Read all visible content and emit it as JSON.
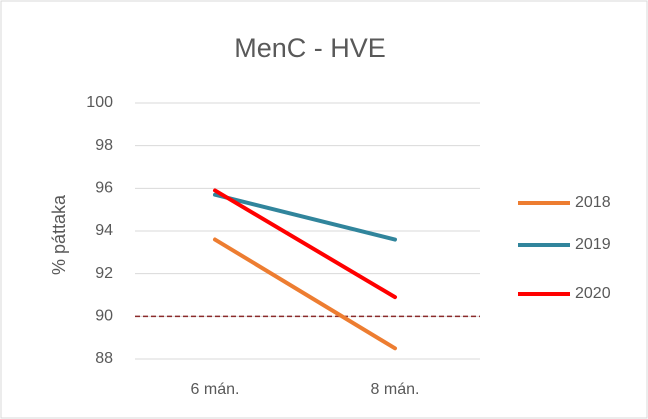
{
  "chart_data": {
    "type": "line",
    "title": "MenC - HVE",
    "y_label": "% páttaka",
    "categories": [
      "6 mán.",
      "8 mán."
    ],
    "series": [
      {
        "name": "2018",
        "color": "#ed7d31",
        "values": [
          93.6,
          88.5
        ]
      },
      {
        "name": "2019",
        "color": "#31859c",
        "values": [
          95.7,
          93.6
        ]
      },
      {
        "name": "2020",
        "color": "#ff0000",
        "values": [
          95.9,
          90.9
        ]
      }
    ],
    "reference_line": 90,
    "reference_color": "#8b2b2b",
    "ylim": [
      88,
      100
    ],
    "yticks": [
      88,
      90,
      92,
      94,
      96,
      98,
      100
    ],
    "grid": true,
    "legend": "right"
  }
}
